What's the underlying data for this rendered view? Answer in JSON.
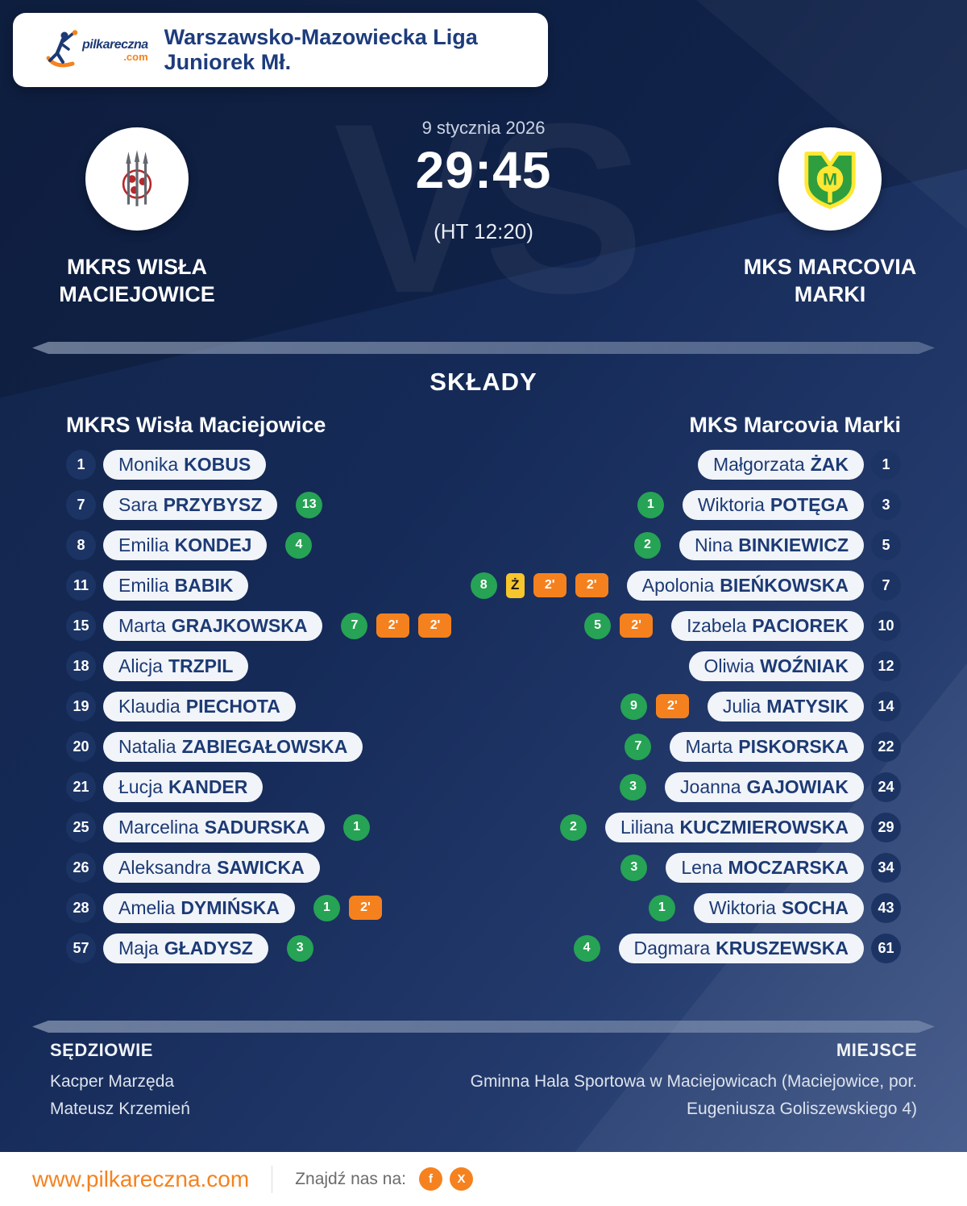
{
  "colors": {
    "accent_orange": "#f5821f",
    "goal_green": "#26a355",
    "yellow_card": "#f7c52c",
    "navy": "#1c3a74",
    "background_navy": "#152a57"
  },
  "header": {
    "logo_name": "pilkareczna",
    "logo_tld": ".com",
    "league": "Warszawsko-Mazowiecka Liga Juniorek Mł."
  },
  "match": {
    "date": "9 stycznia 2026",
    "score": "29:45",
    "halftime": "(HT 12:20)",
    "vs": "VS"
  },
  "teams": {
    "home": {
      "line1": "MKRS WISŁA",
      "line2": "MACIEJOWICE"
    },
    "away": {
      "line1": "MKS MARCOVIA",
      "line2": "MARKI",
      "crest_letter": "M"
    }
  },
  "lineups": {
    "title": "SKŁADY",
    "badge_labels": {
      "suspension": "2'",
      "yellow": "Ż"
    },
    "home": {
      "team": "MKRS Wisła Maciejowice",
      "players": [
        {
          "number": "1",
          "first": "Monika",
          "last": "KOBUS",
          "goals": "",
          "susp": 0,
          "yellow": false
        },
        {
          "number": "7",
          "first": "Sara",
          "last": "PRZYBYSZ",
          "goals": "13",
          "susp": 0,
          "yellow": false
        },
        {
          "number": "8",
          "first": "Emilia",
          "last": "KONDEJ",
          "goals": "4",
          "susp": 0,
          "yellow": false
        },
        {
          "number": "11",
          "first": "Emilia",
          "last": "BABIK",
          "goals": "",
          "susp": 0,
          "yellow": false
        },
        {
          "number": "15",
          "first": "Marta",
          "last": "GRAJKOWSKA",
          "goals": "7",
          "susp": 2,
          "yellow": false
        },
        {
          "number": "18",
          "first": "Alicja",
          "last": "TRZPIL",
          "goals": "",
          "susp": 0,
          "yellow": false
        },
        {
          "number": "19",
          "first": "Klaudia",
          "last": "PIECHOTA",
          "goals": "",
          "susp": 0,
          "yellow": false
        },
        {
          "number": "20",
          "first": "Natalia",
          "last": "ZABIEGAŁOWSKA",
          "goals": "",
          "susp": 0,
          "yellow": false
        },
        {
          "number": "21",
          "first": "Łucja",
          "last": "KANDER",
          "goals": "",
          "susp": 0,
          "yellow": false
        },
        {
          "number": "25",
          "first": "Marcelina",
          "last": "SADURSKA",
          "goals": "1",
          "susp": 0,
          "yellow": false
        },
        {
          "number": "26",
          "first": "Aleksandra",
          "last": "SAWICKA",
          "goals": "",
          "susp": 0,
          "yellow": false
        },
        {
          "number": "28",
          "first": "Amelia",
          "last": "DYMIŃSKA",
          "goals": "1",
          "susp": 1,
          "yellow": false
        },
        {
          "number": "57",
          "first": "Maja",
          "last": "GŁADYSZ",
          "goals": "3",
          "susp": 0,
          "yellow": false
        }
      ]
    },
    "away": {
      "team": "MKS Marcovia Marki",
      "players": [
        {
          "number": "1",
          "first": "Małgorzata",
          "last": "ŻAK",
          "goals": "",
          "susp": 0,
          "yellow": false
        },
        {
          "number": "3",
          "first": "Wiktoria",
          "last": "POTĘGA",
          "goals": "1",
          "susp": 0,
          "yellow": false
        },
        {
          "number": "5",
          "first": "Nina",
          "last": "BINKIEWICZ",
          "goals": "2",
          "susp": 0,
          "yellow": false
        },
        {
          "number": "7",
          "first": "Apolonia",
          "last": "BIEŃKOWSKA",
          "goals": "8",
          "susp": 2,
          "yellow": true
        },
        {
          "number": "10",
          "first": "Izabela",
          "last": "PACIOREK",
          "goals": "5",
          "susp": 1,
          "yellow": false
        },
        {
          "number": "12",
          "first": "Oliwia",
          "last": "WOŹNIAK",
          "goals": "",
          "susp": 0,
          "yellow": false
        },
        {
          "number": "14",
          "first": "Julia",
          "last": "MATYSIK",
          "goals": "9",
          "susp": 1,
          "yellow": false
        },
        {
          "number": "22",
          "first": "Marta",
          "last": "PISKORSKA",
          "goals": "7",
          "susp": 0,
          "yellow": false
        },
        {
          "number": "24",
          "first": "Joanna",
          "last": "GAJOWIAK",
          "goals": "3",
          "susp": 0,
          "yellow": false
        },
        {
          "number": "29",
          "first": "Liliana",
          "last": "KUCZMIEROWSKA",
          "goals": "2",
          "susp": 0,
          "yellow": false
        },
        {
          "number": "34",
          "first": "Lena",
          "last": "MOCZARSKA",
          "goals": "3",
          "susp": 0,
          "yellow": false
        },
        {
          "number": "43",
          "first": "Wiktoria",
          "last": "SOCHA",
          "goals": "1",
          "susp": 0,
          "yellow": false
        },
        {
          "number": "61",
          "first": "Dagmara",
          "last": "KRUSZEWSKA",
          "goals": "4",
          "susp": 0,
          "yellow": false
        }
      ]
    }
  },
  "officials": {
    "title": "SĘDZIOWIE",
    "referees": [
      "Kacper Marzęda",
      "Mateusz Krzemień"
    ]
  },
  "venue": {
    "title": "MIEJSCE",
    "line1": "Gminna Hala Sportowa w Maciejowicach (Maciejowice, por.",
    "line2": "Eugeniusza Goliszewskiego 4)"
  },
  "footer": {
    "url": "www.pilkareczna.com",
    "find_us": "Znajdź nas na:",
    "social": [
      "f",
      "X"
    ]
  }
}
